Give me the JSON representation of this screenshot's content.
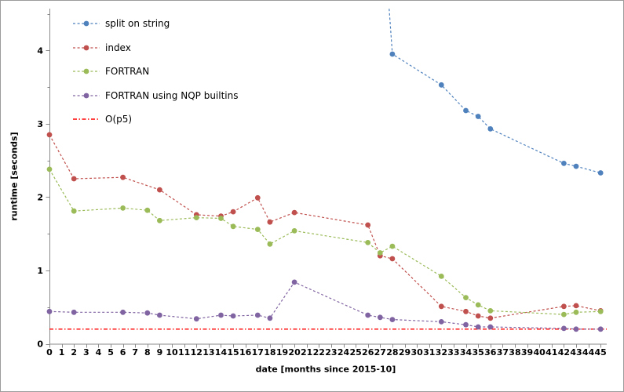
{
  "chart_data": {
    "type": "line",
    "title": "",
    "xlabel": "date [months since 2015-10]",
    "ylabel": "runtime [seconds]",
    "xlim": [
      0,
      45.5
    ],
    "ylim": [
      0,
      4.57
    ],
    "x_major_ticks": [
      0,
      1,
      2,
      3,
      4,
      5,
      6,
      7,
      8,
      9,
      10,
      11,
      12,
      13,
      14,
      15,
      16,
      17,
      18,
      19,
      20,
      21,
      22,
      23,
      24,
      25,
      26,
      27,
      28,
      29,
      30,
      31,
      32,
      33,
      34,
      35,
      36,
      37,
      38,
      39,
      40,
      41,
      42,
      43,
      44,
      45
    ],
    "y_major_ticks": [
      0,
      1,
      2,
      3,
      4
    ],
    "y_minor_ticks": [
      0.5,
      1.5,
      2.5,
      3.5,
      4.5
    ],
    "grid": false,
    "legend_position": "top-left-inside",
    "axis_color": "#8a8a8a",
    "tick_label_color": "#000000",
    "series": [
      {
        "name": "split on string",
        "color": "#4f81bd",
        "line_style": "dashed",
        "marker": "circle",
        "points": [
          [
            27,
            6.3
          ],
          [
            28,
            3.95
          ],
          [
            32,
            3.53
          ],
          [
            34,
            3.18
          ],
          [
            35,
            3.1
          ],
          [
            36,
            2.93
          ],
          [
            42,
            2.46
          ],
          [
            43,
            2.42
          ],
          [
            45,
            2.33
          ]
        ],
        "note_first_point_clipped_above_plot": true
      },
      {
        "name": "index",
        "color": "#c0504d",
        "line_style": "dashed",
        "marker": "circle",
        "points": [
          [
            0,
            2.85
          ],
          [
            2,
            2.25
          ],
          [
            6,
            2.27
          ],
          [
            9,
            2.1
          ],
          [
            12,
            1.76
          ],
          [
            14,
            1.74
          ],
          [
            15,
            1.8
          ],
          [
            17,
            1.99
          ],
          [
            18,
            1.66
          ],
          [
            20,
            1.79
          ],
          [
            26,
            1.62
          ],
          [
            27,
            1.2
          ],
          [
            28,
            1.16
          ],
          [
            32,
            0.51
          ],
          [
            34,
            0.44
          ],
          [
            35,
            0.38
          ],
          [
            36,
            0.35
          ],
          [
            42,
            0.51
          ],
          [
            43,
            0.52
          ],
          [
            45,
            0.45
          ]
        ]
      },
      {
        "name": "FORTRAN",
        "color": "#9bbb59",
        "line_style": "dashed",
        "marker": "circle",
        "points": [
          [
            0,
            2.38
          ],
          [
            2,
            1.81
          ],
          [
            6,
            1.85
          ],
          [
            8,
            1.82
          ],
          [
            9,
            1.68
          ],
          [
            12,
            1.72
          ],
          [
            14,
            1.71
          ],
          [
            15,
            1.6
          ],
          [
            17,
            1.56
          ],
          [
            18,
            1.36
          ],
          [
            20,
            1.54
          ],
          [
            26,
            1.38
          ],
          [
            27,
            1.24
          ],
          [
            28,
            1.33
          ],
          [
            32,
            0.92
          ],
          [
            34,
            0.63
          ],
          [
            35,
            0.53
          ],
          [
            36,
            0.45
          ],
          [
            42,
            0.4
          ],
          [
            43,
            0.43
          ],
          [
            45,
            0.44
          ]
        ]
      },
      {
        "name": "FORTRAN using NQP builtins",
        "color": "#8064a2",
        "line_style": "dashed",
        "marker": "circle",
        "points": [
          [
            0,
            0.44
          ],
          [
            2,
            0.43
          ],
          [
            6,
            0.43
          ],
          [
            8,
            0.42
          ],
          [
            9,
            0.39
          ],
          [
            12,
            0.34
          ],
          [
            14,
            0.39
          ],
          [
            15,
            0.38
          ],
          [
            17,
            0.39
          ],
          [
            18,
            0.35
          ],
          [
            20,
            0.84
          ],
          [
            26,
            0.39
          ],
          [
            27,
            0.36
          ],
          [
            28,
            0.33
          ],
          [
            32,
            0.3
          ],
          [
            34,
            0.26
          ],
          [
            35,
            0.23
          ],
          [
            36,
            0.23
          ],
          [
            42,
            0.21
          ],
          [
            43,
            0.2
          ],
          [
            45,
            0.2
          ]
        ]
      },
      {
        "name": "O(p5)",
        "color": "#ff0000",
        "line_style": "dash-dot",
        "marker": "none",
        "points": [
          [
            0,
            0.2
          ],
          [
            45.5,
            0.2
          ]
        ]
      }
    ]
  }
}
